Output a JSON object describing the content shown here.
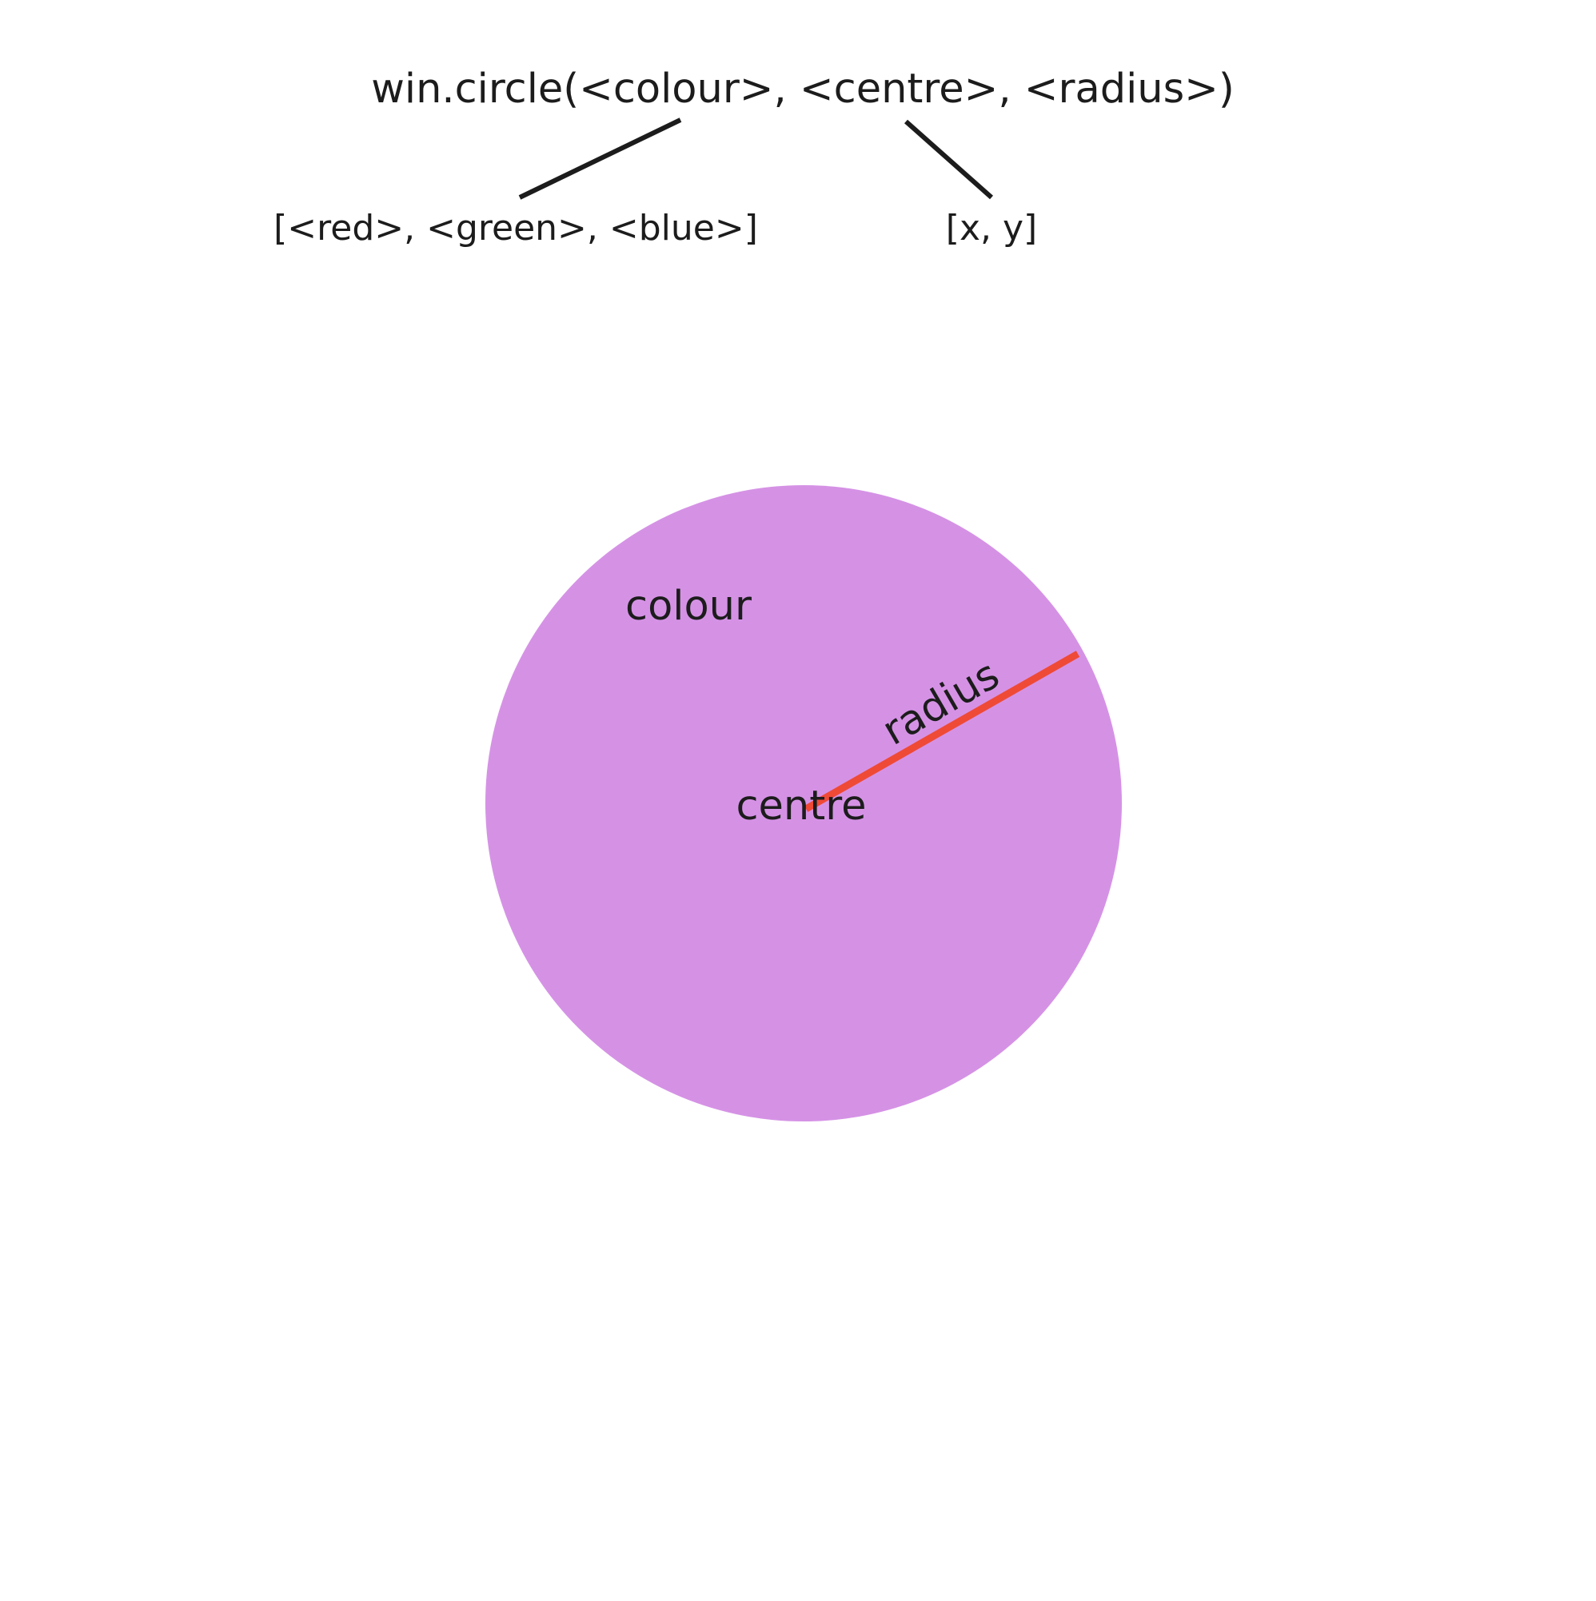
{
  "signature": {
    "text": "win.circle(<colour>, <centre>, <radius>)"
  },
  "colour_param": {
    "text": "[<red>, <green>, <blue>]"
  },
  "centre_param": {
    "text": "[x, y]"
  },
  "circle": {
    "fill_color": "#d592e5",
    "colour_label": "colour",
    "centre_label": "centre",
    "radius_label": "radius",
    "radius_line_color": "#ef4a36"
  },
  "connector_color": "#1c1c1c"
}
